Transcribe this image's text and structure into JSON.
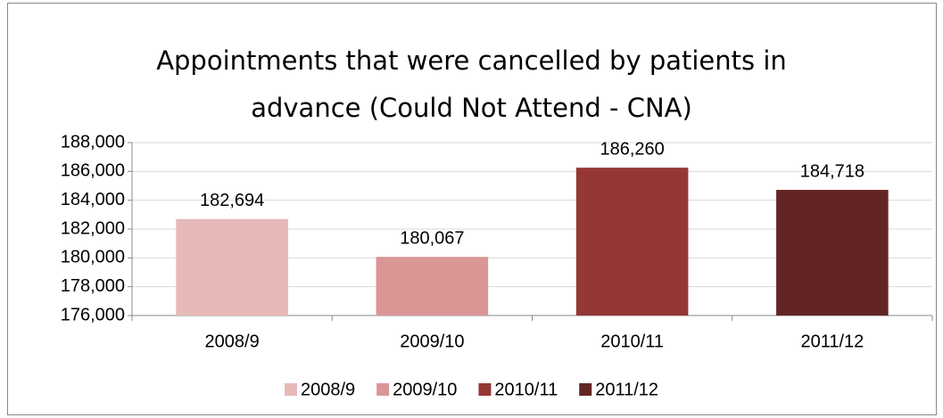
{
  "chart_data": {
    "type": "bar",
    "title": "Appointments that were cancelled by patients in advance (Could Not Attend - CNA)",
    "categories": [
      "2008/9",
      "2009/10",
      "2010/11",
      "2011/12"
    ],
    "values": [
      182694,
      180067,
      186260,
      184718
    ],
    "value_labels": [
      "182,694",
      "180,067",
      "186,260",
      "184,718"
    ],
    "colors": [
      "#e6b9b8",
      "#d99694",
      "#953735",
      "#632523"
    ],
    "ylim": [
      176000,
      188000
    ],
    "yticks": [
      {
        "value": 176000,
        "label": "176,000"
      },
      {
        "value": 178000,
        "label": "178,000"
      },
      {
        "value": 180000,
        "label": "180,000"
      },
      {
        "value": 182000,
        "label": "182,000"
      },
      {
        "value": 184000,
        "label": "184,000"
      },
      {
        "value": 186000,
        "label": "186,000"
      },
      {
        "value": 188000,
        "label": "188,000"
      }
    ],
    "grid": true,
    "legend": "bottom"
  }
}
